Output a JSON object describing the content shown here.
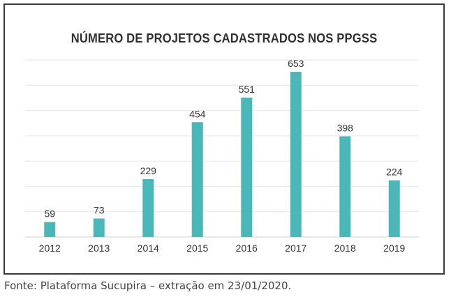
{
  "chart_data": {
    "type": "bar",
    "title": "NÚMERO DE PROJETOS CADASTRADOS NOS PPGSS",
    "categories": [
      "2012",
      "2013",
      "2014",
      "2015",
      "2016",
      "2017",
      "2018",
      "2019"
    ],
    "values": [
      59,
      73,
      229,
      454,
      551,
      653,
      398,
      224
    ],
    "data_labels": [
      "59",
      "73",
      "229",
      "454",
      "551",
      "653",
      "398",
      "224"
    ],
    "xlabel": "",
    "ylabel": "",
    "ylim": [
      0,
      700
    ],
    "grid": true,
    "legend": "none",
    "bar_color": "#4ab7b9",
    "grid_color": "#e6e6e6",
    "text_color": "#333333"
  },
  "footer": {
    "source": "Fonte: Plataforma Sucupira – extração em 23/01/2020."
  }
}
